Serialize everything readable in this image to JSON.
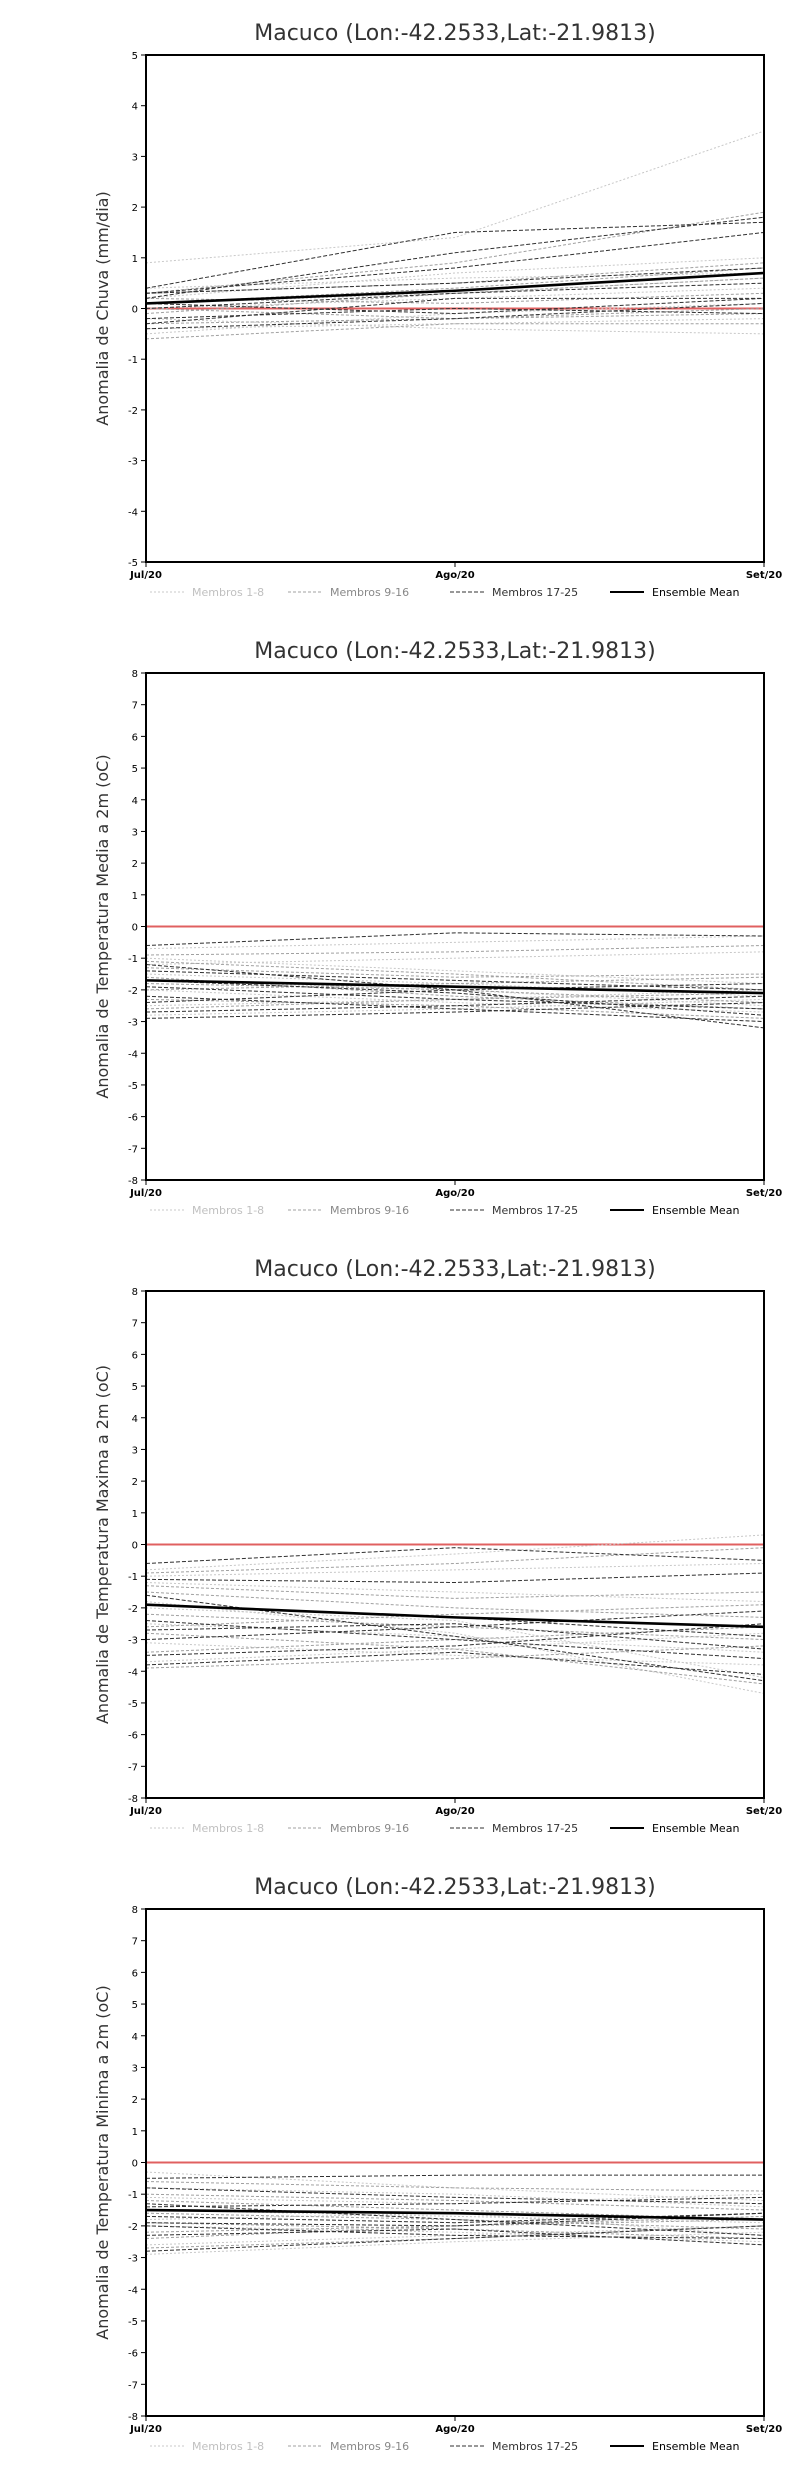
{
  "colors": {
    "background": "#ffffff",
    "frame": "#000000",
    "zero_line": "#e06060",
    "members_1_8": "#c8c8c8",
    "members_9_16": "#a0a0a0",
    "members_17_25": "#303030",
    "ensemble_mean": "#000000"
  },
  "chart_data": [
    {
      "type": "line",
      "title": "Macuco (Lon:-42.2533,Lat:-21.9813)",
      "ylabel": "Anomalia de Chuva (mm/dia)",
      "xlabel": "",
      "x": [
        "Jul/20",
        "Ago/20",
        "Set/20"
      ],
      "ylim": [
        -5,
        5
      ],
      "yticks": [
        "-5",
        "-4",
        "-3",
        "-2",
        "-1",
        "0",
        "1",
        "2",
        "3",
        "4",
        "5"
      ],
      "grid": false,
      "legend": "bottom",
      "legend_entries": [
        "Membros 1-8",
        "Membros 9-16",
        "Membros 17-25",
        "Ensemble Mean"
      ],
      "reference_line": 0,
      "series": [
        {
          "group": "Membros 1-8",
          "values": [
            0.9,
            1.4,
            3.5
          ]
        },
        {
          "group": "Membros 1-8",
          "values": [
            0.1,
            0.3,
            0.6
          ]
        },
        {
          "group": "Membros 1-8",
          "values": [
            -0.4,
            -0.3,
            -0.2
          ]
        },
        {
          "group": "Membros 1-8",
          "values": [
            0.2,
            0.7,
            1.0
          ]
        },
        {
          "group": "Membros 1-8",
          "values": [
            -0.5,
            -0.1,
            0.1
          ]
        },
        {
          "group": "Membros 1-8",
          "values": [
            0.0,
            0.2,
            0.4
          ]
        },
        {
          "group": "Membros 1-8",
          "values": [
            0.4,
            0.6,
            0.7
          ]
        },
        {
          "group": "Membros 1-8",
          "values": [
            -0.2,
            -0.4,
            -0.5
          ]
        },
        {
          "group": "Membros 9-16",
          "values": [
            0.3,
            0.9,
            1.9
          ]
        },
        {
          "group": "Membros 9-16",
          "values": [
            -0.3,
            -0.2,
            0.0
          ]
        },
        {
          "group": "Membros 9-16",
          "values": [
            0.1,
            0.4,
            0.8
          ]
        },
        {
          "group": "Membros 9-16",
          "values": [
            -0.6,
            -0.3,
            -0.3
          ]
        },
        {
          "group": "Membros 9-16",
          "values": [
            0.2,
            0.1,
            0.3
          ]
        },
        {
          "group": "Membros 9-16",
          "values": [
            -0.1,
            0.3,
            0.6
          ]
        },
        {
          "group": "Membros 9-16",
          "values": [
            0.0,
            -0.2,
            -0.1
          ]
        },
        {
          "group": "Membros 9-16",
          "values": [
            0.3,
            0.5,
            0.9
          ]
        },
        {
          "group": "Membros 17-25",
          "values": [
            0.4,
            1.5,
            1.7
          ]
        },
        {
          "group": "Membros 17-25",
          "values": [
            0.2,
            1.1,
            1.8
          ]
        },
        {
          "group": "Membros 17-25",
          "values": [
            0.3,
            0.8,
            1.5
          ]
        },
        {
          "group": "Membros 17-25",
          "values": [
            -0.3,
            0.2,
            0.2
          ]
        },
        {
          "group": "Membros 17-25",
          "values": [
            0.1,
            -0.1,
            0.2
          ]
        },
        {
          "group": "Membros 17-25",
          "values": [
            -0.2,
            0.0,
            -0.1
          ]
        },
        {
          "group": "Membros 17-25",
          "values": [
            0.3,
            0.5,
            0.8
          ]
        },
        {
          "group": "Membros 17-25",
          "values": [
            0.0,
            0.3,
            0.5
          ]
        },
        {
          "group": "Membros 17-25",
          "values": [
            -0.4,
            -0.2,
            0.1
          ]
        },
        {
          "group": "Ensemble Mean",
          "values": [
            0.1,
            0.35,
            0.7
          ]
        }
      ]
    },
    {
      "type": "line",
      "title": "Macuco (Lon:-42.2533,Lat:-21.9813)",
      "ylabel": "Anomalia de Temperatura Media a 2m (oC)",
      "xlabel": "",
      "x": [
        "Jul/20",
        "Ago/20",
        "Set/20"
      ],
      "ylim": [
        -8,
        8
      ],
      "yticks": [
        "-8",
        "-7",
        "-6",
        "-5",
        "-4",
        "-3",
        "-2",
        "-1",
        "0",
        "1",
        "2",
        "3",
        "4",
        "5",
        "6",
        "7",
        "8"
      ],
      "grid": false,
      "legend": "bottom",
      "legend_entries": [
        "Membros 1-8",
        "Membros 9-16",
        "Membros 17-25",
        "Ensemble Mean"
      ],
      "reference_line": 0,
      "series": [
        {
          "group": "Membros 1-8",
          "values": [
            -0.7,
            -0.5,
            -0.3
          ]
        },
        {
          "group": "Membros 1-8",
          "values": [
            -1.5,
            -1.8,
            -2.2
          ]
        },
        {
          "group": "Membros 1-8",
          "values": [
            -2.5,
            -2.3,
            -2.0
          ]
        },
        {
          "group": "Membros 1-8",
          "values": [
            -1.0,
            -1.4,
            -1.8
          ]
        },
        {
          "group": "Membros 1-8",
          "values": [
            -2.0,
            -2.4,
            -2.7
          ]
        },
        {
          "group": "Membros 1-8",
          "values": [
            -1.2,
            -1.0,
            -0.8
          ]
        },
        {
          "group": "Membros 1-8",
          "values": [
            -2.8,
            -2.6,
            -2.3
          ]
        },
        {
          "group": "Membros 1-8",
          "values": [
            -1.7,
            -2.0,
            -2.5
          ]
        },
        {
          "group": "Membros 9-16",
          "values": [
            -0.9,
            -0.8,
            -0.6
          ]
        },
        {
          "group": "Membros 9-16",
          "values": [
            -1.8,
            -2.0,
            -2.4
          ]
        },
        {
          "group": "Membros 9-16",
          "values": [
            -2.3,
            -2.5,
            -2.9
          ]
        },
        {
          "group": "Membros 9-16",
          "values": [
            -1.3,
            -1.6,
            -1.5
          ]
        },
        {
          "group": "Membros 9-16",
          "values": [
            -2.6,
            -2.3,
            -2.1
          ]
        },
        {
          "group": "Membros 9-16",
          "values": [
            -1.1,
            -1.5,
            -2.0
          ]
        },
        {
          "group": "Membros 9-16",
          "values": [
            -2.0,
            -1.8,
            -1.6
          ]
        },
        {
          "group": "Membros 9-16",
          "values": [
            -1.6,
            -2.2,
            -2.6
          ]
        },
        {
          "group": "Membros 17-25",
          "values": [
            -0.6,
            -0.2,
            -0.3
          ]
        },
        {
          "group": "Membros 17-25",
          "values": [
            -1.2,
            -2.0,
            -3.2
          ]
        },
        {
          "group": "Membros 17-25",
          "values": [
            -2.7,
            -2.5,
            -2.2
          ]
        },
        {
          "group": "Membros 17-25",
          "values": [
            -1.9,
            -2.3,
            -2.6
          ]
        },
        {
          "group": "Membros 17-25",
          "values": [
            -2.4,
            -2.0,
            -1.8
          ]
        },
        {
          "group": "Membros 17-25",
          "values": [
            -1.4,
            -1.7,
            -2.0
          ]
        },
        {
          "group": "Membros 17-25",
          "values": [
            -2.2,
            -2.6,
            -3.0
          ]
        },
        {
          "group": "Membros 17-25",
          "values": [
            -1.7,
            -2.1,
            -2.8
          ]
        },
        {
          "group": "Membros 17-25",
          "values": [
            -2.9,
            -2.7,
            -2.4
          ]
        },
        {
          "group": "Ensemble Mean",
          "values": [
            -1.7,
            -1.9,
            -2.1
          ]
        }
      ]
    },
    {
      "type": "line",
      "title": "Macuco (Lon:-42.2533,Lat:-21.9813)",
      "ylabel": "Anomalia de Temperatura Maxima a 2m (oC)",
      "xlabel": "",
      "x": [
        "Jul/20",
        "Ago/20",
        "Set/20"
      ],
      "ylim": [
        -8,
        8
      ],
      "yticks": [
        "-8",
        "-7",
        "-6",
        "-5",
        "-4",
        "-3",
        "-2",
        "-1",
        "0",
        "1",
        "2",
        "3",
        "4",
        "5",
        "6",
        "7",
        "8"
      ],
      "grid": false,
      "legend": "bottom",
      "legend_entries": [
        "Membros 1-8",
        "Membros 9-16",
        "Membros 17-25",
        "Ensemble Mean"
      ],
      "reference_line": 0,
      "series": [
        {
          "group": "Membros 1-8",
          "values": [
            -0.8,
            -0.3,
            0.3
          ]
        },
        {
          "group": "Membros 1-8",
          "values": [
            -1.8,
            -2.8,
            -4.7
          ]
        },
        {
          "group": "Membros 1-8",
          "values": [
            -3.1,
            -3.5,
            -3.8
          ]
        },
        {
          "group": "Membros 1-8",
          "values": [
            -1.2,
            -1.5,
            -1.8
          ]
        },
        {
          "group": "Membros 1-8",
          "values": [
            -2.5,
            -2.9,
            -3.4
          ]
        },
        {
          "group": "Membros 1-8",
          "values": [
            -3.7,
            -3.3,
            -2.8
          ]
        },
        {
          "group": "Membros 1-8",
          "values": [
            -2.0,
            -2.4,
            -4.2
          ]
        },
        {
          "group": "Membros 1-8",
          "values": [
            -1.0,
            -0.8,
            -0.6
          ]
        },
        {
          "group": "Membros 9-16",
          "values": [
            -0.9,
            -0.6,
            -0.1
          ]
        },
        {
          "group": "Membros 9-16",
          "values": [
            -2.2,
            -2.6,
            -3.0
          ]
        },
        {
          "group": "Membros 9-16",
          "values": [
            -3.4,
            -3.0,
            -2.6
          ]
        },
        {
          "group": "Membros 9-16",
          "values": [
            -1.5,
            -2.0,
            -2.3
          ]
        },
        {
          "group": "Membros 9-16",
          "values": [
            -2.8,
            -3.3,
            -4.4
          ]
        },
        {
          "group": "Membros 9-16",
          "values": [
            -1.3,
            -1.7,
            -1.5
          ]
        },
        {
          "group": "Membros 9-16",
          "values": [
            -3.9,
            -3.6,
            -3.2
          ]
        },
        {
          "group": "Membros 9-16",
          "values": [
            -2.6,
            -2.2,
            -1.9
          ]
        },
        {
          "group": "Membros 17-25",
          "values": [
            -0.6,
            -0.1,
            -0.5
          ]
        },
        {
          "group": "Membros 17-25",
          "values": [
            -1.6,
            -2.9,
            -4.3
          ]
        },
        {
          "group": "Membros 17-25",
          "values": [
            -3.5,
            -3.2,
            -2.5
          ]
        },
        {
          "group": "Membros 17-25",
          "values": [
            -2.4,
            -3.0,
            -3.6
          ]
        },
        {
          "group": "Membros 17-25",
          "values": [
            -1.9,
            -2.3,
            -2.9
          ]
        },
        {
          "group": "Membros 17-25",
          "values": [
            -3.0,
            -2.6,
            -2.1
          ]
        },
        {
          "group": "Membros 17-25",
          "values": [
            -1.1,
            -1.2,
            -0.9
          ]
        },
        {
          "group": "Membros 17-25",
          "values": [
            -2.7,
            -2.5,
            -3.3
          ]
        },
        {
          "group": "Membros 17-25",
          "values": [
            -3.8,
            -3.4,
            -4.1
          ]
        },
        {
          "group": "Ensemble Mean",
          "values": [
            -1.9,
            -2.3,
            -2.6
          ]
        }
      ]
    },
    {
      "type": "line",
      "title": "Macuco (Lon:-42.2533,Lat:-21.9813)",
      "ylabel": "Anomalia de Temperatura Minima a 2m (oC)",
      "xlabel": "",
      "x": [
        "Jul/20",
        "Ago/20",
        "Set/20"
      ],
      "ylim": [
        -8,
        8
      ],
      "yticks": [
        "-8",
        "-7",
        "-6",
        "-5",
        "-4",
        "-3",
        "-2",
        "-1",
        "0",
        "1",
        "2",
        "3",
        "4",
        "5",
        "6",
        "7",
        "8"
      ],
      "grid": false,
      "legend": "bottom",
      "legend_entries": [
        "Membros 1-8",
        "Membros 9-16",
        "Membros 17-25",
        "Ensemble Mean"
      ],
      "reference_line": 0,
      "series": [
        {
          "group": "Membros 1-8",
          "values": [
            -0.3,
            -0.8,
            -1.2
          ]
        },
        {
          "group": "Membros 1-8",
          "values": [
            -1.5,
            -1.7,
            -1.9
          ]
        },
        {
          "group": "Membros 1-8",
          "values": [
            -2.6,
            -2.3,
            -2.0
          ]
        },
        {
          "group": "Membros 1-8",
          "values": [
            -0.8,
            -1.0,
            -1.4
          ]
        },
        {
          "group": "Membros 1-8",
          "values": [
            -2.0,
            -2.2,
            -2.5
          ]
        },
        {
          "group": "Membros 1-8",
          "values": [
            -1.1,
            -1.3,
            -1.0
          ]
        },
        {
          "group": "Membros 1-8",
          "values": [
            -2.9,
            -2.5,
            -2.2
          ]
        },
        {
          "group": "Membros 1-8",
          "values": [
            -1.8,
            -1.6,
            -2.3
          ]
        },
        {
          "group": "Membros 9-16",
          "values": [
            -0.6,
            -0.8,
            -0.9
          ]
        },
        {
          "group": "Membros 9-16",
          "values": [
            -1.9,
            -2.1,
            -2.4
          ]
        },
        {
          "group": "Membros 9-16",
          "values": [
            -2.4,
            -2.0,
            -1.7
          ]
        },
        {
          "group": "Membros 9-16",
          "values": [
            -1.2,
            -1.5,
            -1.8
          ]
        },
        {
          "group": "Membros 9-16",
          "values": [
            -2.7,
            -2.4,
            -2.0
          ]
        },
        {
          "group": "Membros 9-16",
          "values": [
            -1.0,
            -1.2,
            -1.5
          ]
        },
        {
          "group": "Membros 9-16",
          "values": [
            -2.2,
            -2.0,
            -1.8
          ]
        },
        {
          "group": "Membros 9-16",
          "values": [
            -1.6,
            -1.8,
            -2.1
          ]
        },
        {
          "group": "Membros 17-25",
          "values": [
            -0.5,
            -0.4,
            -0.4
          ]
        },
        {
          "group": "Membros 17-25",
          "values": [
            -1.3,
            -1.8,
            -2.3
          ]
        },
        {
          "group": "Membros 17-25",
          "values": [
            -2.8,
            -2.4,
            -2.0
          ]
        },
        {
          "group": "Membros 17-25",
          "values": [
            -1.9,
            -2.0,
            -1.6
          ]
        },
        {
          "group": "Membros 17-25",
          "values": [
            -0.8,
            -1.1,
            -1.3
          ]
        },
        {
          "group": "Membros 17-25",
          "values": [
            -2.3,
            -2.1,
            -2.6
          ]
        },
        {
          "group": "Membros 17-25",
          "values": [
            -1.4,
            -1.3,
            -1.1
          ]
        },
        {
          "group": "Membros 17-25",
          "values": [
            -2.0,
            -2.3,
            -2.4
          ]
        },
        {
          "group": "Membros 17-25",
          "values": [
            -1.7,
            -1.9,
            -1.6
          ]
        },
        {
          "group": "Ensemble Mean",
          "values": [
            -1.5,
            -1.6,
            -1.8
          ]
        }
      ]
    }
  ]
}
